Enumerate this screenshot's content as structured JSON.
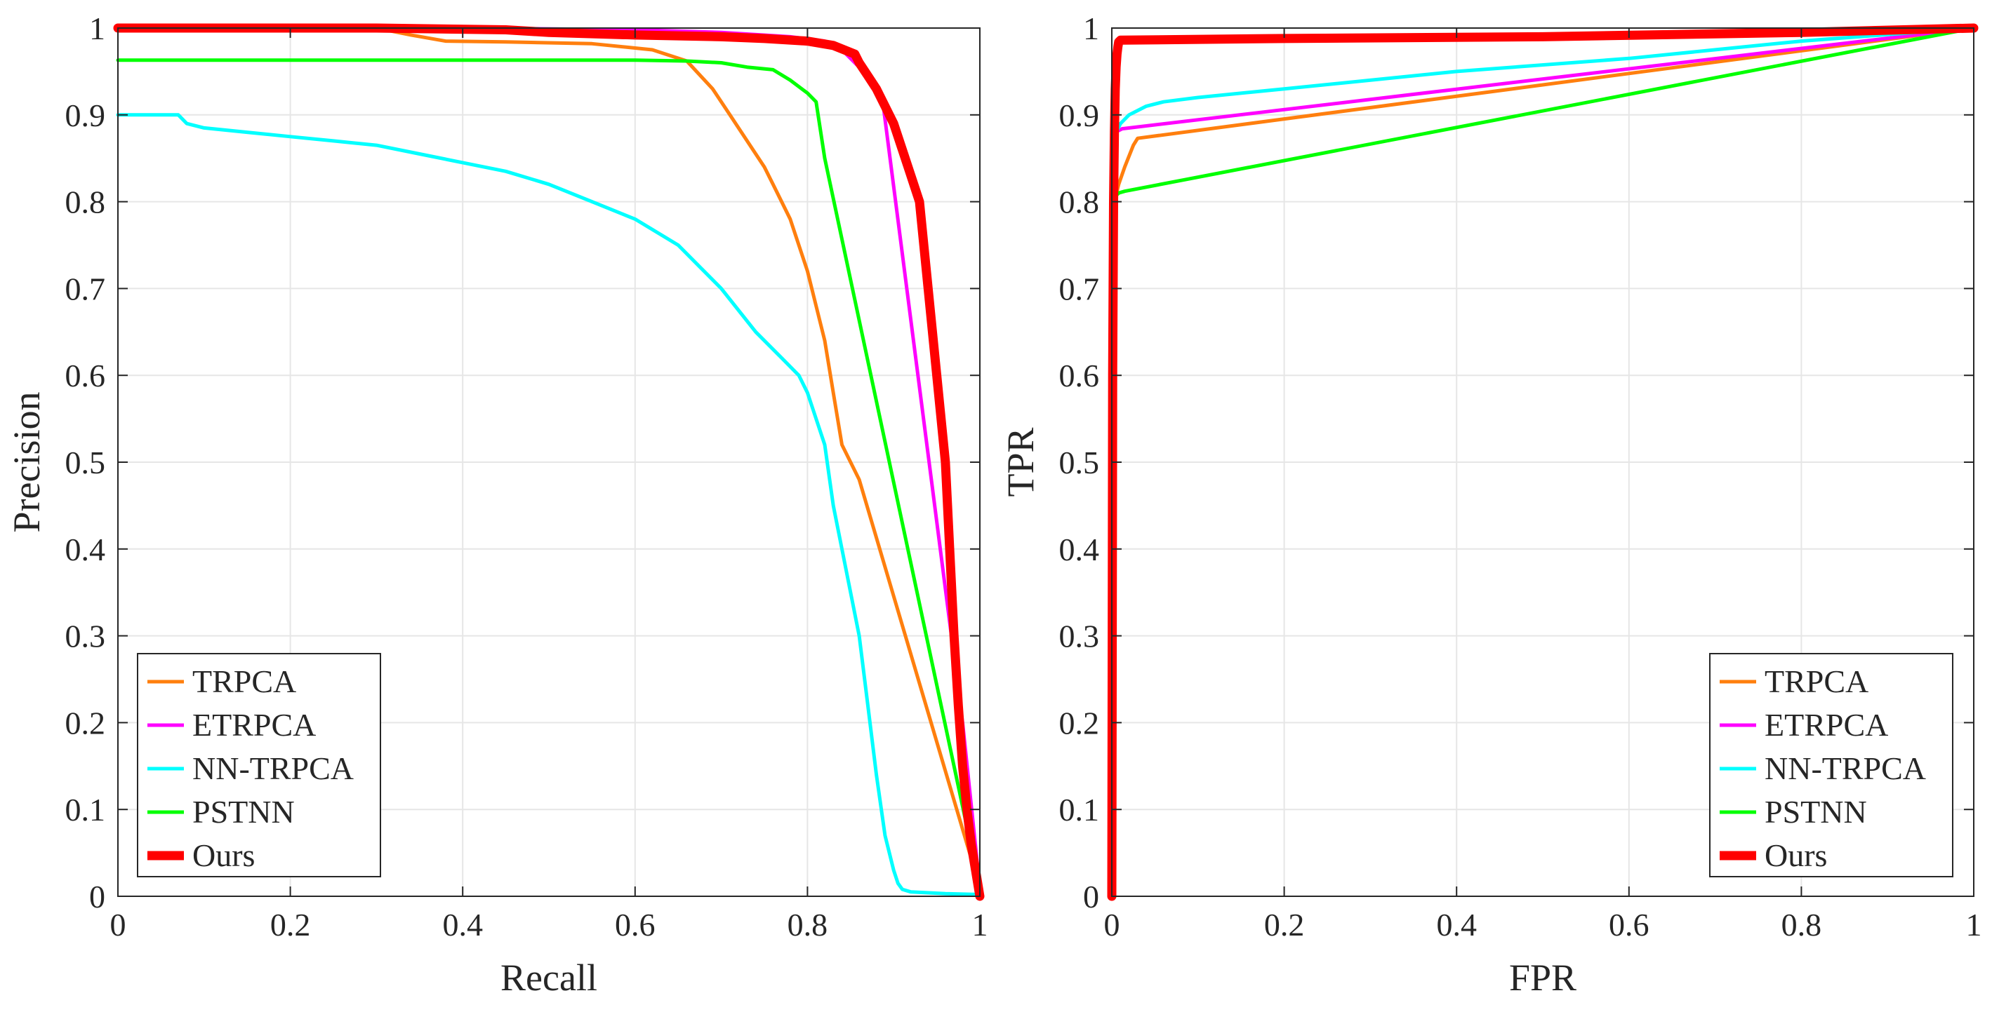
{
  "chart_data": [
    {
      "type": "line",
      "title": "",
      "xlabel": "Recall",
      "ylabel": "Precision",
      "xlim": [
        0,
        1
      ],
      "ylim": [
        0,
        1
      ],
      "grid": true,
      "legend_position": "bottom-left",
      "xticks": [
        "0",
        "0.2",
        "0.4",
        "0.6",
        "0.8",
        "1"
      ],
      "yticks": [
        "0",
        "0.1",
        "0.2",
        "0.3",
        "0.4",
        "0.5",
        "0.6",
        "0.7",
        "0.8",
        "0.9",
        "1"
      ],
      "series": [
        {
          "name": "TRPCA",
          "color": "#ff7f0e",
          "width": 5,
          "x": [
            0,
            0.3,
            0.34,
            0.38,
            0.45,
            0.55,
            0.62,
            0.66,
            0.69,
            0.71,
            0.73,
            0.75,
            0.76,
            0.77,
            0.78,
            0.79,
            0.8,
            0.81,
            0.82,
            0.83,
            0.84,
            0.86,
            1.0
          ],
          "y": [
            1.0,
            1.0,
            0.992,
            0.985,
            0.984,
            0.982,
            0.975,
            0.962,
            0.93,
            0.9,
            0.87,
            0.84,
            0.82,
            0.8,
            0.78,
            0.75,
            0.72,
            0.68,
            0.64,
            0.58,
            0.52,
            0.48,
            0.01
          ]
        },
        {
          "name": "ETRPCA",
          "color": "#ff00ff",
          "width": 5,
          "x": [
            0,
            0.4,
            0.6,
            0.7,
            0.78,
            0.82,
            0.84,
            0.86,
            0.875,
            0.888,
            0.98,
            1.0
          ],
          "y": [
            1.0,
            1.0,
            0.998,
            0.995,
            0.99,
            0.985,
            0.975,
            0.955,
            0.935,
            0.91,
            0.2,
            0.01
          ]
        },
        {
          "name": "NN-TRPCA",
          "color": "#00ffff",
          "width": 5,
          "x": [
            0,
            0.07,
            0.08,
            0.1,
            0.15,
            0.2,
            0.25,
            0.3,
            0.35,
            0.4,
            0.45,
            0.5,
            0.55,
            0.6,
            0.65,
            0.7,
            0.74,
            0.77,
            0.79,
            0.8,
            0.81,
            0.82,
            0.83,
            0.84,
            0.85,
            0.86,
            0.87,
            0.88,
            0.89,
            0.9,
            0.905,
            0.91,
            0.92,
            0.94,
            0.96,
            1.0
          ],
          "y": [
            0.9,
            0.9,
            0.89,
            0.885,
            0.88,
            0.875,
            0.87,
            0.865,
            0.855,
            0.845,
            0.835,
            0.82,
            0.8,
            0.78,
            0.75,
            0.7,
            0.65,
            0.62,
            0.6,
            0.58,
            0.55,
            0.52,
            0.45,
            0.4,
            0.35,
            0.3,
            0.22,
            0.14,
            0.07,
            0.03,
            0.015,
            0.008,
            0.005,
            0.004,
            0.003,
            0.002
          ]
        },
        {
          "name": "PSTNN",
          "color": "#00ff00",
          "width": 5,
          "x": [
            0,
            0.6,
            0.66,
            0.7,
            0.73,
            0.76,
            0.78,
            0.8,
            0.81,
            0.82,
            1.0
          ],
          "y": [
            0.963,
            0.963,
            0.962,
            0.96,
            0.955,
            0.952,
            0.94,
            0.925,
            0.915,
            0.85,
            0.01
          ]
        },
        {
          "name": "Ours",
          "color": "#ff0000",
          "width": 13,
          "x": [
            0,
            0.3,
            0.45,
            0.5,
            0.6,
            0.7,
            0.75,
            0.8,
            0.83,
            0.855,
            0.86,
            0.87,
            0.88,
            0.89,
            0.9,
            0.91,
            0.92,
            0.93,
            0.94,
            0.95,
            0.96,
            0.965,
            0.97,
            0.975,
            0.98,
            0.985,
            0.99,
            0.995,
            1.0
          ],
          "y": [
            1.0,
            1.0,
            0.998,
            0.995,
            0.992,
            0.99,
            0.988,
            0.985,
            0.98,
            0.97,
            0.96,
            0.945,
            0.93,
            0.91,
            0.89,
            0.86,
            0.83,
            0.8,
            0.7,
            0.6,
            0.5,
            0.4,
            0.3,
            0.22,
            0.15,
            0.1,
            0.06,
            0.03,
            0.0
          ]
        }
      ]
    },
    {
      "type": "line",
      "title": "",
      "xlabel": "FPR",
      "ylabel": "TPR",
      "xlim": [
        0,
        1
      ],
      "ylim": [
        0,
        1
      ],
      "grid": true,
      "legend_position": "bottom-right",
      "xticks": [
        "0",
        "0.2",
        "0.4",
        "0.6",
        "0.8",
        "1"
      ],
      "yticks": [
        "0",
        "0.1",
        "0.2",
        "0.3",
        "0.4",
        "0.5",
        "0.6",
        "0.7",
        "0.8",
        "0.9",
        "1"
      ],
      "series": [
        {
          "name": "TRPCA",
          "color": "#ff7f0e",
          "width": 5,
          "x": [
            0,
            0.003,
            0.008,
            0.015,
            0.025,
            0.03,
            1.0
          ],
          "y": [
            0.8,
            0.8,
            0.82,
            0.84,
            0.865,
            0.873,
            1.0
          ]
        },
        {
          "name": "ETRPCA",
          "color": "#ff00ff",
          "width": 5,
          "x": [
            0,
            0.004,
            0.008,
            0.012,
            1.0
          ],
          "y": [
            0.88,
            0.88,
            0.882,
            0.884,
            1.0
          ]
        },
        {
          "name": "NN-TRPCA",
          "color": "#00ffff",
          "width": 5,
          "x": [
            0,
            0.005,
            0.01,
            0.02,
            0.03,
            0.04,
            0.06,
            0.1,
            0.2,
            0.4,
            0.6,
            0.8,
            1.0
          ],
          "y": [
            0.87,
            0.88,
            0.89,
            0.9,
            0.905,
            0.91,
            0.915,
            0.92,
            0.93,
            0.95,
            0.965,
            0.985,
            1.0
          ]
        },
        {
          "name": "PSTNN",
          "color": "#00ff00",
          "width": 5,
          "x": [
            0,
            0.003,
            0.008,
            0.015,
            1.0
          ],
          "y": [
            0.8,
            0.805,
            0.81,
            0.812,
            1.0
          ]
        },
        {
          "name": "Ours",
          "color": "#ff0000",
          "width": 13,
          "x": [
            0,
            0.001,
            0.002,
            0.003,
            0.004,
            0.005,
            0.006,
            0.007,
            0.008,
            0.01,
            0.2,
            0.5,
            0.8,
            1.0
          ],
          "y": [
            0.0,
            0.6,
            0.8,
            0.88,
            0.93,
            0.955,
            0.97,
            0.978,
            0.984,
            0.986,
            0.988,
            0.99,
            0.995,
            1.0
          ]
        }
      ]
    }
  ]
}
